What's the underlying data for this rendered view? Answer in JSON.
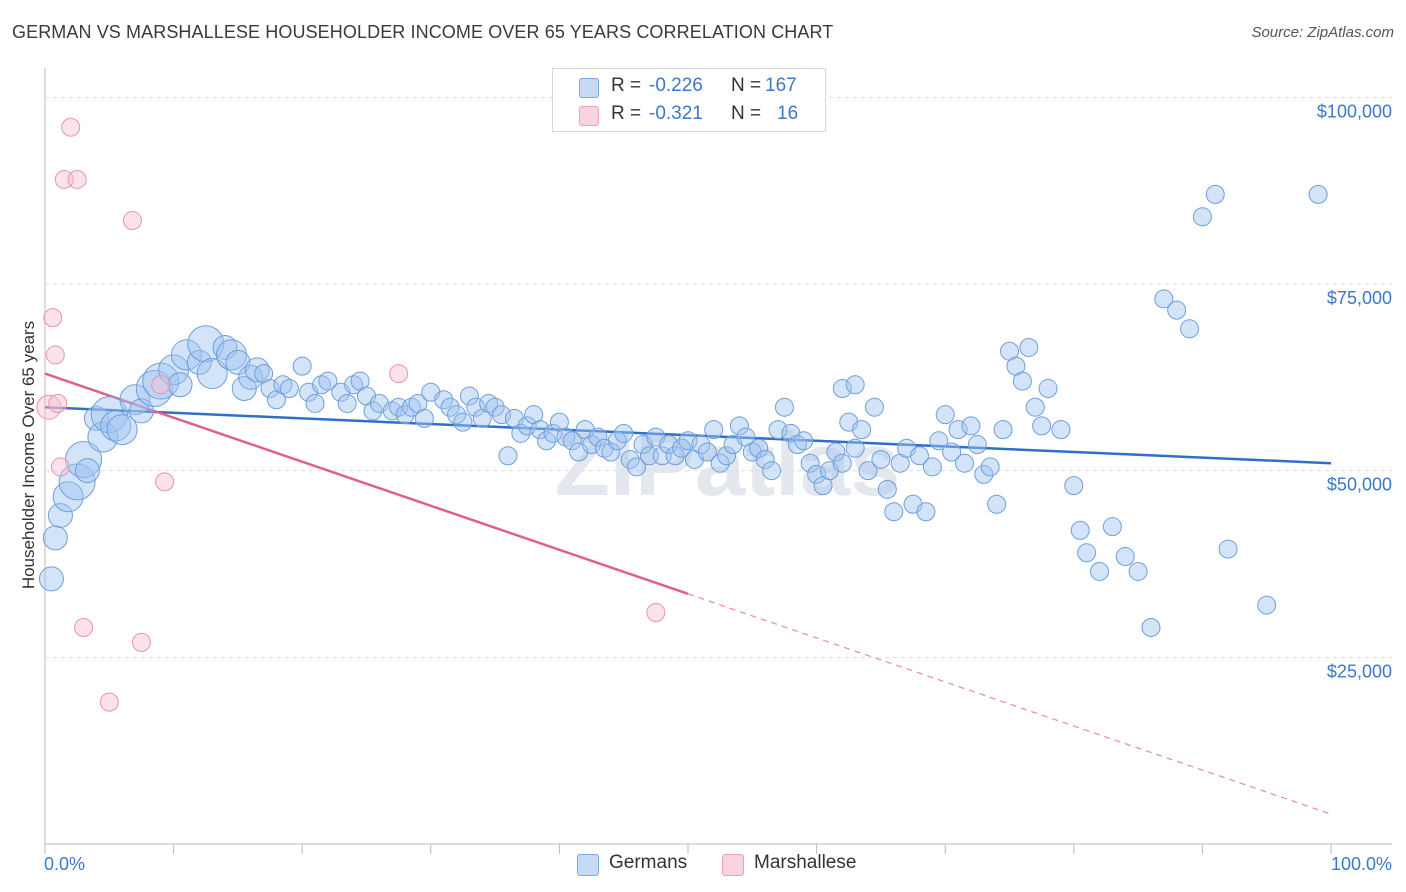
{
  "title": "GERMAN VS MARSHALLESE HOUSEHOLDER INCOME OVER 65 YEARS CORRELATION CHART",
  "source": "Source: ZipAtlas.com",
  "watermark": "ZIPatlas",
  "legend": {
    "rows": [
      {
        "r_label": "R =",
        "r_value": "-0.226",
        "n_label": "N =",
        "n_value": "167",
        "color": "#7ea9e0"
      },
      {
        "r_label": "R =",
        "r_value": "-0.321",
        "n_label": "N =",
        "n_value": "16",
        "color": "#f0a0b8"
      }
    ]
  },
  "bottom_legend": [
    {
      "label": "Germans",
      "color": "#a9c8ef"
    },
    {
      "label": "Marshallese",
      "color": "#f7c2d2"
    }
  ],
  "chart_data": {
    "type": "scatter",
    "title": "GERMAN VS MARSHALLESE HOUSEHOLDER INCOME OVER 65 YEARS CORRELATION CHART",
    "xlabel": "",
    "ylabel": "Householder Income Over 65 years",
    "xlim": [
      0,
      100
    ],
    "ylim": [
      0,
      105000
    ],
    "x_tick_labels": [
      "0.0%",
      "100.0%"
    ],
    "y_ticks": [
      25000,
      50000,
      75000,
      100000
    ],
    "y_tick_labels": [
      "$25,000",
      "$50,000",
      "$75,000",
      "$100,000"
    ],
    "grid": "horizontal dashed",
    "series": [
      {
        "name": "Germans",
        "color": "#7ea9e0",
        "trend": {
          "x": [
            0,
            100
          ],
          "y": [
            58500,
            51000
          ]
        },
        "points": [
          [
            0.5,
            35500,
            2
          ],
          [
            0.8,
            41000,
            2
          ],
          [
            1.2,
            44000,
            2
          ],
          [
            1.8,
            46500,
            2.5
          ],
          [
            2.5,
            48500,
            3
          ],
          [
            3,
            51500,
            3
          ],
          [
            3.3,
            50000,
            2
          ],
          [
            4,
            57000,
            2
          ],
          [
            4.5,
            54500,
            2.5
          ],
          [
            5,
            57500,
            3
          ],
          [
            5.5,
            56000,
            2.5
          ],
          [
            6,
            55500,
            2.5
          ],
          [
            7,
            59500,
            2.5
          ],
          [
            7.5,
            58000,
            2
          ],
          [
            8.5,
            61000,
            3
          ],
          [
            9,
            62000,
            3
          ],
          [
            10,
            63500,
            2.5
          ],
          [
            10.5,
            61500,
            2
          ],
          [
            11,
            65500,
            2.5
          ],
          [
            12,
            64500,
            2
          ],
          [
            12.5,
            67000,
            3
          ],
          [
            13,
            63000,
            2.5
          ],
          [
            14,
            66500,
            2
          ],
          [
            14.5,
            65500,
            2.5
          ],
          [
            15,
            64500,
            2
          ],
          [
            15.5,
            61000,
            2
          ],
          [
            16,
            62500,
            2
          ],
          [
            16.5,
            63500,
            2
          ],
          [
            17,
            63000,
            1.5
          ],
          [
            17.5,
            61000,
            1.5
          ],
          [
            18,
            59500,
            1.5
          ],
          [
            18.5,
            61500,
            1.5
          ],
          [
            19,
            61000,
            1.5
          ],
          [
            20,
            64000,
            1.5
          ],
          [
            20.5,
            60500,
            1.5
          ],
          [
            21,
            59000,
            1.5
          ],
          [
            21.5,
            61500,
            1.5
          ],
          [
            22,
            62000,
            1.5
          ],
          [
            23,
            60500,
            1.5
          ],
          [
            23.5,
            59000,
            1.5
          ],
          [
            24,
            61500,
            1.5
          ],
          [
            24.5,
            62000,
            1.5
          ],
          [
            25,
            60000,
            1.5
          ],
          [
            25.5,
            58000,
            1.5
          ],
          [
            26,
            59000,
            1.5
          ],
          [
            27,
            58000,
            1.5
          ],
          [
            27.5,
            58500,
            1.5
          ],
          [
            28,
            57500,
            1.5
          ],
          [
            28.5,
            58500,
            1.5
          ],
          [
            29,
            59000,
            1.5
          ],
          [
            29.5,
            57000,
            1.5
          ],
          [
            30,
            60500,
            1.5
          ],
          [
            31,
            59500,
            1.5
          ],
          [
            31.5,
            58500,
            1.5
          ],
          [
            32,
            57500,
            1.5
          ],
          [
            32.5,
            56500,
            1.5
          ],
          [
            33,
            60000,
            1.5
          ],
          [
            33.5,
            58500,
            1.5
          ],
          [
            34,
            57000,
            1.5
          ],
          [
            34.5,
            59000,
            1.5
          ],
          [
            35,
            58500,
            1.5
          ],
          [
            35.5,
            57500,
            1.5
          ],
          [
            36,
            52000,
            1.5
          ],
          [
            36.5,
            57000,
            1.5
          ],
          [
            37,
            55000,
            1.5
          ],
          [
            37.5,
            56000,
            1.5
          ],
          [
            38,
            57500,
            1.5
          ],
          [
            38.5,
            55500,
            1.5
          ],
          [
            39,
            54000,
            1.5
          ],
          [
            39.5,
            55000,
            1.5
          ],
          [
            40,
            56500,
            1.5
          ],
          [
            40.5,
            54500,
            1.5
          ],
          [
            41,
            54000,
            1.5
          ],
          [
            41.5,
            52500,
            1.5
          ],
          [
            42,
            55500,
            1.5
          ],
          [
            42.5,
            53500,
            1.5
          ],
          [
            43,
            54500,
            1.5
          ],
          [
            43.5,
            53000,
            1.5
          ],
          [
            44,
            52500,
            1.5
          ],
          [
            44.5,
            54000,
            1.5
          ],
          [
            45,
            55000,
            1.5
          ],
          [
            45.5,
            51500,
            1.5
          ],
          [
            46,
            50500,
            1.5
          ],
          [
            46.5,
            53500,
            1.5
          ],
          [
            47,
            52000,
            1.5
          ],
          [
            47.5,
            54500,
            1.5
          ],
          [
            48,
            52000,
            1.5
          ],
          [
            48.5,
            53500,
            1.5
          ],
          [
            49,
            52000,
            1.5
          ],
          [
            49.5,
            53000,
            1.5
          ],
          [
            50,
            54000,
            1.5
          ],
          [
            50.5,
            51500,
            1.5
          ],
          [
            51,
            53500,
            1.5
          ],
          [
            51.5,
            52500,
            1.5
          ],
          [
            52,
            55500,
            1.5
          ],
          [
            52.5,
            51000,
            1.5
          ],
          [
            53,
            52000,
            1.5
          ],
          [
            53.5,
            53500,
            1.5
          ],
          [
            54,
            56000,
            1.5
          ],
          [
            54.5,
            54500,
            1.5
          ],
          [
            55,
            52500,
            1.5
          ],
          [
            55.5,
            53000,
            1.5
          ],
          [
            56,
            51500,
            1.5
          ],
          [
            56.5,
            50000,
            1.5
          ],
          [
            57,
            55500,
            1.5
          ],
          [
            57.5,
            58500,
            1.5
          ],
          [
            58,
            55000,
            1.5
          ],
          [
            58.5,
            53500,
            1.5
          ],
          [
            59,
            54000,
            1.5
          ],
          [
            59.5,
            51000,
            1.5
          ],
          [
            60,
            49500,
            1.5
          ],
          [
            60.5,
            48000,
            1.5
          ],
          [
            61,
            50000,
            1.5
          ],
          [
            61.5,
            52500,
            1.5
          ],
          [
            62,
            51000,
            1.5
          ],
          [
            62.5,
            56500,
            1.5
          ],
          [
            63,
            53000,
            1.5
          ],
          [
            63.5,
            55500,
            1.5
          ],
          [
            64,
            50000,
            1.5
          ],
          [
            64.5,
            58500,
            1.5
          ],
          [
            65,
            51500,
            1.5
          ],
          [
            65.5,
            47500,
            1.5
          ],
          [
            66,
            44500,
            1.5
          ],
          [
            66.5,
            51000,
            1.5
          ],
          [
            67,
            53000,
            1.5
          ],
          [
            67.5,
            45500,
            1.5
          ],
          [
            68,
            52000,
            1.5
          ],
          [
            68.5,
            44500,
            1.5
          ],
          [
            69,
            50500,
            1.5
          ],
          [
            69.5,
            54000,
            1.5
          ],
          [
            70,
            57500,
            1.5
          ],
          [
            70.5,
            52500,
            1.5
          ],
          [
            71,
            55500,
            1.5
          ],
          [
            71.5,
            51000,
            1.5
          ],
          [
            72,
            56000,
            1.5
          ],
          [
            72.5,
            53500,
            1.5
          ],
          [
            73,
            49500,
            1.5
          ],
          [
            73.5,
            50500,
            1.5
          ],
          [
            74,
            45500,
            1.5
          ],
          [
            74.5,
            55500,
            1.5
          ],
          [
            75,
            66000,
            1.5
          ],
          [
            75.5,
            64000,
            1.5
          ],
          [
            76,
            62000,
            1.5
          ],
          [
            76.5,
            66500,
            1.5
          ],
          [
            77,
            58500,
            1.5
          ],
          [
            77.5,
            56000,
            1.5
          ],
          [
            78,
            61000,
            1.5
          ],
          [
            79,
            55500,
            1.5
          ],
          [
            80,
            48000,
            1.5
          ],
          [
            80.5,
            42000,
            1.5
          ],
          [
            81,
            39000,
            1.5
          ],
          [
            82,
            36500,
            1.5
          ],
          [
            83,
            42500,
            1.5
          ],
          [
            84,
            38500,
            1.5
          ],
          [
            85,
            36500,
            1.5
          ],
          [
            86,
            29000,
            1.5
          ],
          [
            87,
            73000,
            1.5
          ],
          [
            88,
            71500,
            1.5
          ],
          [
            89,
            69000,
            1.5
          ],
          [
            90,
            84000,
            1.5
          ],
          [
            91,
            87000,
            1.5
          ],
          [
            92,
            39500,
            1.5
          ],
          [
            95,
            32000,
            1.5
          ],
          [
            99,
            87000,
            1.5
          ],
          [
            62,
            61000,
            1.5
          ],
          [
            63,
            61500,
            1.5
          ]
        ]
      },
      {
        "name": "Marshallese",
        "color": "#f0a0b8",
        "trend": {
          "x": [
            0,
            50,
            100
          ],
          "y": [
            63000,
            33500,
            4000
          ]
        },
        "points": [
          [
            0.3,
            58500,
            2
          ],
          [
            0.6,
            70500,
            1.5
          ],
          [
            0.8,
            65500,
            1.5
          ],
          [
            1,
            59000,
            1.5
          ],
          [
            1.2,
            50500,
            1.5
          ],
          [
            1.5,
            89000,
            1.5
          ],
          [
            2,
            96000,
            1.5
          ],
          [
            2.5,
            89000,
            1.5
          ],
          [
            3,
            29000,
            1.5
          ],
          [
            5,
            19000,
            1.5
          ],
          [
            6.8,
            83500,
            1.5
          ],
          [
            7.5,
            27000,
            1.5
          ],
          [
            9,
            61500,
            1.5
          ],
          [
            9.3,
            48500,
            1.5
          ],
          [
            27.5,
            63000,
            1.5
          ],
          [
            47.5,
            31000,
            1.5
          ]
        ]
      }
    ]
  }
}
